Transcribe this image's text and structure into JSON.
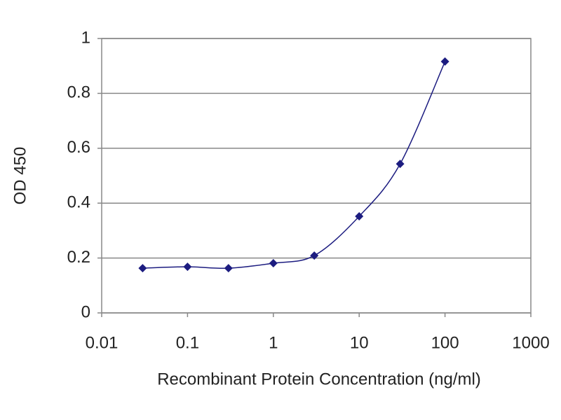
{
  "chart_data": {
    "type": "line",
    "x_label": "Recombinant Protein Concentration (ng/ml)",
    "y_label": "OD 450",
    "x": [
      0.03,
      0.1,
      0.3,
      1,
      3,
      10,
      30,
      100
    ],
    "series": [
      {
        "color": "#1c1c80",
        "values": [
          0.163,
          0.168,
          0.163,
          0.181,
          0.209,
          0.352,
          0.543,
          0.916
        ]
      }
    ],
    "xscale": "log",
    "xlim": [
      0.01,
      1000
    ],
    "xticks": [
      0.01,
      0.1,
      1,
      10,
      100,
      1000
    ],
    "ylim": [
      0,
      1
    ],
    "yticks": [
      0,
      0.2,
      0.4,
      0.6,
      0.8,
      1
    ],
    "grid": true,
    "smooth": true
  }
}
